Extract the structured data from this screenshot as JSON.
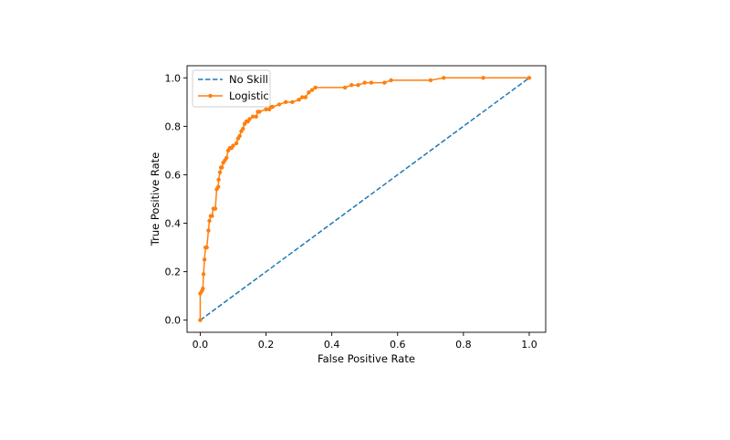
{
  "chart_data": {
    "type": "line",
    "title": "",
    "xlabel": "False Positive Rate",
    "ylabel": "True Positive Rate",
    "xlim": [
      -0.04,
      1.05
    ],
    "ylim": [
      -0.05,
      1.05
    ],
    "x_ticks": [
      0.0,
      0.2,
      0.4,
      0.6,
      0.8,
      1.0
    ],
    "x_tick_labels": [
      "0.0",
      "0.2",
      "0.4",
      "0.6",
      "0.8",
      "1.0"
    ],
    "y_ticks": [
      0.0,
      0.2,
      0.4,
      0.6,
      0.8,
      1.0
    ],
    "y_tick_labels": [
      "0.0",
      "0.2",
      "0.4",
      "0.6",
      "0.8",
      "1.0"
    ],
    "grid": false,
    "legend": "top-left",
    "series": [
      {
        "name": "No Skill",
        "color": "#1f77b4",
        "style": "dashed",
        "markers": false,
        "x": [
          0.0,
          1.0
        ],
        "y": [
          0.0,
          1.0
        ]
      },
      {
        "name": "Logistic",
        "color": "#ff7f0e",
        "style": "solid",
        "markers": true,
        "x": [
          0.0,
          0.0,
          0.005,
          0.008,
          0.01,
          0.013,
          0.016,
          0.02,
          0.025,
          0.028,
          0.032,
          0.036,
          0.04,
          0.046,
          0.05,
          0.055,
          0.056,
          0.06,
          0.063,
          0.066,
          0.07,
          0.075,
          0.08,
          0.085,
          0.09,
          0.095,
          0.1,
          0.11,
          0.115,
          0.12,
          0.125,
          0.13,
          0.135,
          0.14,
          0.145,
          0.15,
          0.16,
          0.17,
          0.175,
          0.18,
          0.2,
          0.21,
          0.215,
          0.22,
          0.24,
          0.26,
          0.28,
          0.3,
          0.31,
          0.32,
          0.33,
          0.34,
          0.35,
          0.44,
          0.46,
          0.48,
          0.5,
          0.52,
          0.56,
          0.58,
          0.7,
          0.74,
          0.86,
          1.0
        ],
        "y": [
          0.0,
          0.11,
          0.12,
          0.13,
          0.19,
          0.25,
          0.3,
          0.3,
          0.37,
          0.41,
          0.43,
          0.43,
          0.46,
          0.46,
          0.54,
          0.55,
          0.58,
          0.61,
          0.63,
          0.63,
          0.65,
          0.66,
          0.67,
          0.7,
          0.71,
          0.71,
          0.72,
          0.73,
          0.75,
          0.76,
          0.78,
          0.79,
          0.81,
          0.82,
          0.82,
          0.83,
          0.84,
          0.84,
          0.86,
          0.86,
          0.87,
          0.87,
          0.88,
          0.88,
          0.89,
          0.9,
          0.9,
          0.91,
          0.92,
          0.92,
          0.94,
          0.95,
          0.96,
          0.96,
          0.97,
          0.97,
          0.98,
          0.98,
          0.98,
          0.99,
          0.99,
          1.0,
          1.0,
          1.0
        ]
      }
    ]
  }
}
